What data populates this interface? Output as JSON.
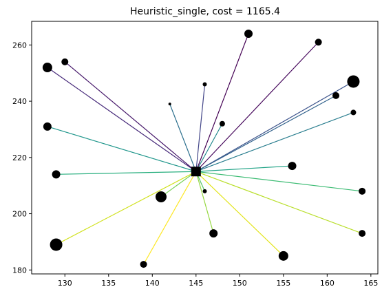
{
  "chart_data": {
    "type": "scatter",
    "title": "Heuristic_single, cost = 1165.4",
    "xlabel": "",
    "ylabel": "",
    "xlim": [
      126.2,
      165.8
    ],
    "ylim": [
      178.6,
      268.4
    ],
    "xticks": [
      130,
      135,
      140,
      145,
      150,
      155,
      160,
      165
    ],
    "yticks": [
      180,
      200,
      220,
      240,
      260
    ],
    "grid": false,
    "hub": {
      "x": 145,
      "y": 215,
      "marker": "square",
      "color": "#000000"
    },
    "points": [
      {
        "x": 151,
        "y": 264,
        "size": 6,
        "edge_color": "#440154"
      },
      {
        "x": 159,
        "y": 261,
        "size": 5,
        "edge_color": "#46085c"
      },
      {
        "x": 130,
        "y": 254,
        "size": 5,
        "edge_color": "#481a6c"
      },
      {
        "x": 128,
        "y": 252,
        "size": 7,
        "edge_color": "#472a7a"
      },
      {
        "x": 146,
        "y": 246,
        "size": 3,
        "edge_color": "#414487"
      },
      {
        "x": 163,
        "y": 247,
        "size": 9,
        "edge_color": "#3b528b"
      },
      {
        "x": 161,
        "y": 242,
        "size": 5,
        "edge_color": "#33638d"
      },
      {
        "x": 142,
        "y": 239,
        "size": 2,
        "edge_color": "#2d708e"
      },
      {
        "x": 163,
        "y": 236,
        "size": 4,
        "edge_color": "#287d8e"
      },
      {
        "x": 148,
        "y": 232,
        "size": 4,
        "edge_color": "#23898e"
      },
      {
        "x": 128,
        "y": 231,
        "size": 6,
        "edge_color": "#1f968b"
      },
      {
        "x": 156,
        "y": 217,
        "size": 6,
        "edge_color": "#20a386"
      },
      {
        "x": 129,
        "y": 214,
        "size": 6,
        "edge_color": "#29af7f"
      },
      {
        "x": 164,
        "y": 208,
        "size": 5,
        "edge_color": "#3dbc74"
      },
      {
        "x": 146,
        "y": 208,
        "size": 3,
        "edge_color": "#56c667"
      },
      {
        "x": 141,
        "y": 206,
        "size": 8,
        "edge_color": "#75d054"
      },
      {
        "x": 147,
        "y": 193,
        "size": 6,
        "edge_color": "#95d840"
      },
      {
        "x": 164,
        "y": 193,
        "size": 5,
        "edge_color": "#b8de29"
      },
      {
        "x": 129,
        "y": 189,
        "size": 9,
        "edge_color": "#d0e11c"
      },
      {
        "x": 155,
        "y": 185,
        "size": 7,
        "edge_color": "#e2e418"
      },
      {
        "x": 139,
        "y": 182,
        "size": 5,
        "edge_color": "#fde725"
      }
    ]
  }
}
